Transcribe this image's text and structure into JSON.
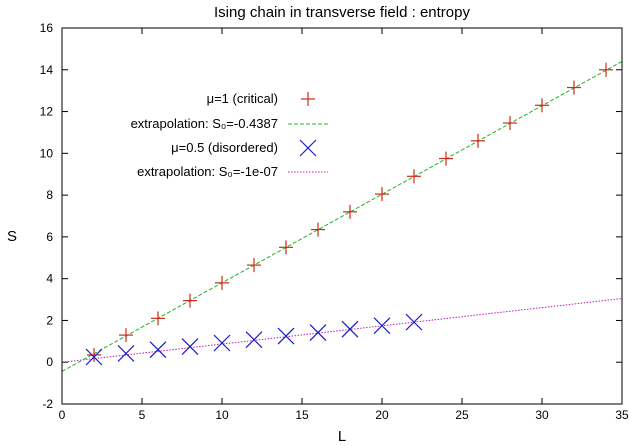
{
  "chart_data": {
    "type": "scatter",
    "title": "Ising chain in transverse field : entropy",
    "xlabel": "L",
    "ylabel": "S",
    "xlim": [
      0,
      35
    ],
    "ylim": [
      -2,
      16
    ],
    "xticks": [
      0,
      5,
      10,
      15,
      20,
      25,
      30,
      35
    ],
    "yticks": [
      -2,
      0,
      2,
      4,
      6,
      8,
      10,
      12,
      14,
      16
    ],
    "grid": false,
    "legend_position": "top-left",
    "series": [
      {
        "name": "μ=1 (critical)",
        "kind": "points",
        "marker": "plus",
        "color": "#cc2a1a",
        "x": [
          2,
          4,
          6,
          8,
          10,
          12,
          14,
          16,
          18,
          20,
          22,
          24,
          26,
          28,
          30,
          32,
          34
        ],
        "y": [
          0.35,
          1.3,
          2.1,
          2.95,
          3.8,
          4.65,
          5.5,
          6.35,
          7.2,
          8.05,
          8.9,
          9.75,
          10.6,
          11.45,
          12.3,
          13.15,
          14.0
        ]
      },
      {
        "name": "extrapolation: S₀=-0.4387",
        "kind": "line",
        "dash": "dashed",
        "color": "#1fb51f",
        "x": [
          0,
          35
        ],
        "y": [
          -0.4387,
          14.4
        ]
      },
      {
        "name": "μ=0.5 (disordered)",
        "kind": "points",
        "marker": "cross",
        "color": "#1a1acc",
        "x": [
          2,
          4,
          6,
          8,
          10,
          12,
          14,
          16,
          18,
          20,
          22
        ],
        "y": [
          0.25,
          0.42,
          0.6,
          0.75,
          0.92,
          1.08,
          1.25,
          1.42,
          1.58,
          1.75,
          1.92
        ]
      },
      {
        "name": "extrapolation: S₀=-1e-07",
        "kind": "line",
        "dash": "dotted",
        "color": "#c01ac0",
        "x": [
          0,
          35
        ],
        "y": [
          0,
          3.05
        ]
      }
    ]
  }
}
